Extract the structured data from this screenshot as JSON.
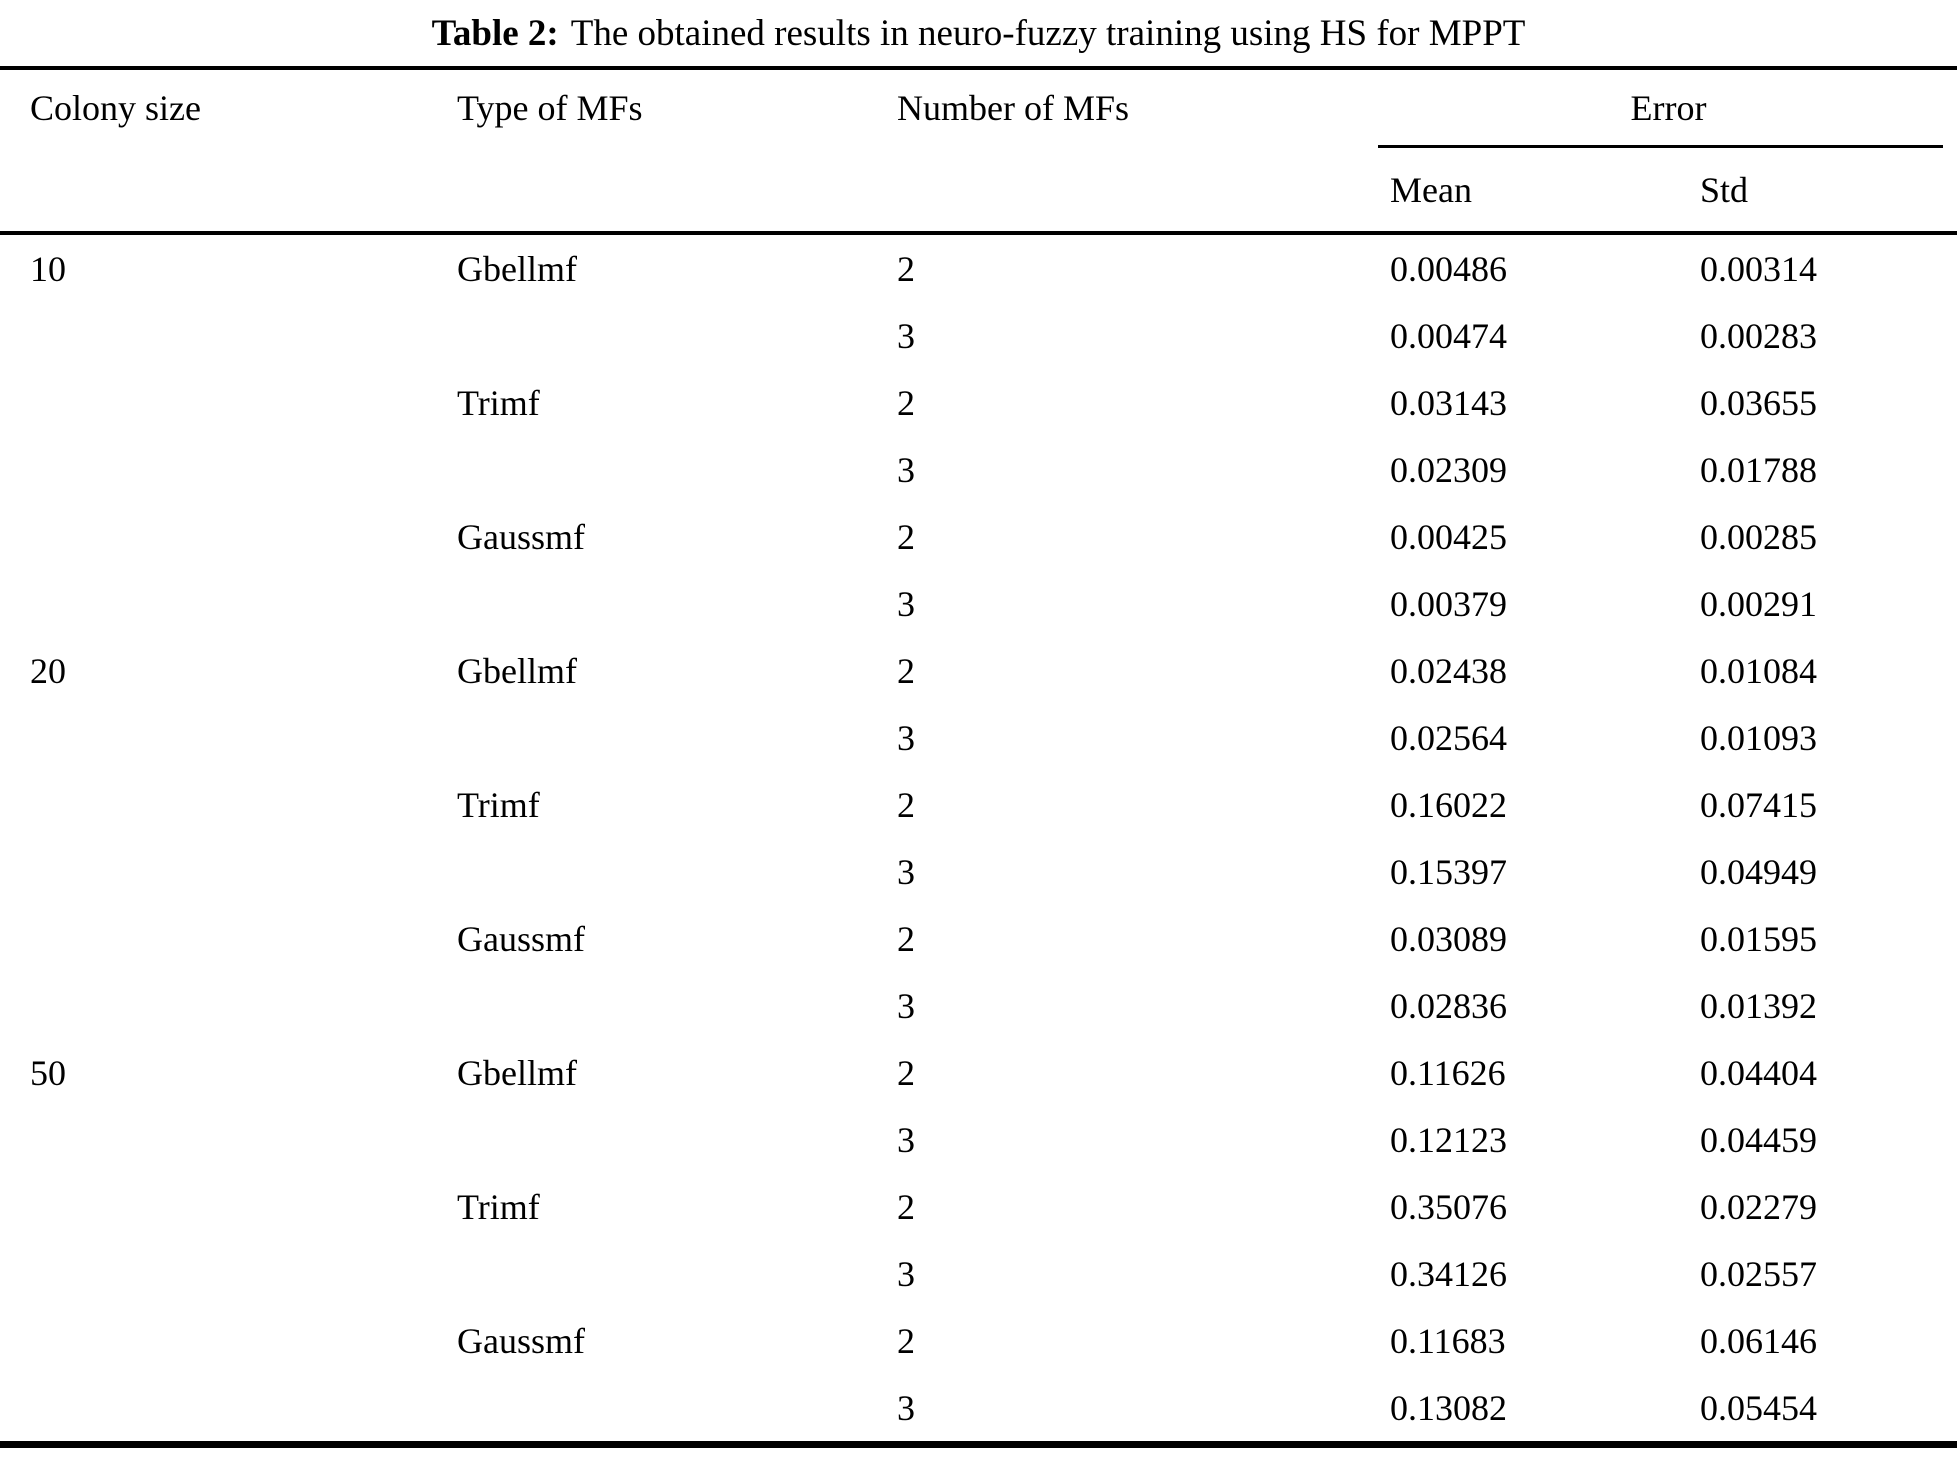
{
  "caption": {
    "label": "Table 2:",
    "text": "The obtained results in neuro-fuzzy training using HS for MPPT"
  },
  "table": {
    "headers": {
      "colony_size": "Colony size",
      "type_of_mfs": "Type of MFs",
      "number_of_mfs": "Number of MFs",
      "error": "Error",
      "mean": "Mean",
      "std": "Std"
    },
    "rows": [
      {
        "colony": "10",
        "type": "Gbellmf",
        "num": "2",
        "mean": "0.00486",
        "std": "0.00314"
      },
      {
        "colony": "",
        "type": "",
        "num": "3",
        "mean": "0.00474",
        "std": "0.00283"
      },
      {
        "colony": "",
        "type": "Trimf",
        "num": "2",
        "mean": "0.03143",
        "std": "0.03655"
      },
      {
        "colony": "",
        "type": "",
        "num": "3",
        "mean": "0.02309",
        "std": "0.01788"
      },
      {
        "colony": "",
        "type": "Gaussmf",
        "num": "2",
        "mean": "0.00425",
        "std": "0.00285"
      },
      {
        "colony": "",
        "type": "",
        "num": "3",
        "mean": "0.00379",
        "std": "0.00291"
      },
      {
        "colony": "20",
        "type": "Gbellmf",
        "num": "2",
        "mean": "0.02438",
        "std": "0.01084"
      },
      {
        "colony": "",
        "type": "",
        "num": "3",
        "mean": "0.02564",
        "std": "0.01093"
      },
      {
        "colony": "",
        "type": "Trimf",
        "num": "2",
        "mean": "0.16022",
        "std": "0.07415"
      },
      {
        "colony": "",
        "type": "",
        "num": "3",
        "mean": "0.15397",
        "std": "0.04949"
      },
      {
        "colony": "",
        "type": "Gaussmf",
        "num": "2",
        "mean": "0.03089",
        "std": "0.01595"
      },
      {
        "colony": "",
        "type": "",
        "num": "3",
        "mean": "0.02836",
        "std": "0.01392"
      },
      {
        "colony": "50",
        "type": "Gbellmf",
        "num": "2",
        "mean": "0.11626",
        "std": "0.04404"
      },
      {
        "colony": "",
        "type": "",
        "num": "3",
        "mean": "0.12123",
        "std": "0.04459"
      },
      {
        "colony": "",
        "type": "Trimf",
        "num": "2",
        "mean": "0.35076",
        "std": "0.02279"
      },
      {
        "colony": "",
        "type": "",
        "num": "3",
        "mean": "0.34126",
        "std": "0.02557"
      },
      {
        "colony": "",
        "type": "Gaussmf",
        "num": "2",
        "mean": "0.11683",
        "std": "0.06146"
      },
      {
        "colony": "",
        "type": "",
        "num": "3",
        "mean": "0.13082",
        "std": "0.05454"
      }
    ]
  },
  "colors": {
    "text": "#000000",
    "background": "#ffffff",
    "rule": "#000000"
  }
}
